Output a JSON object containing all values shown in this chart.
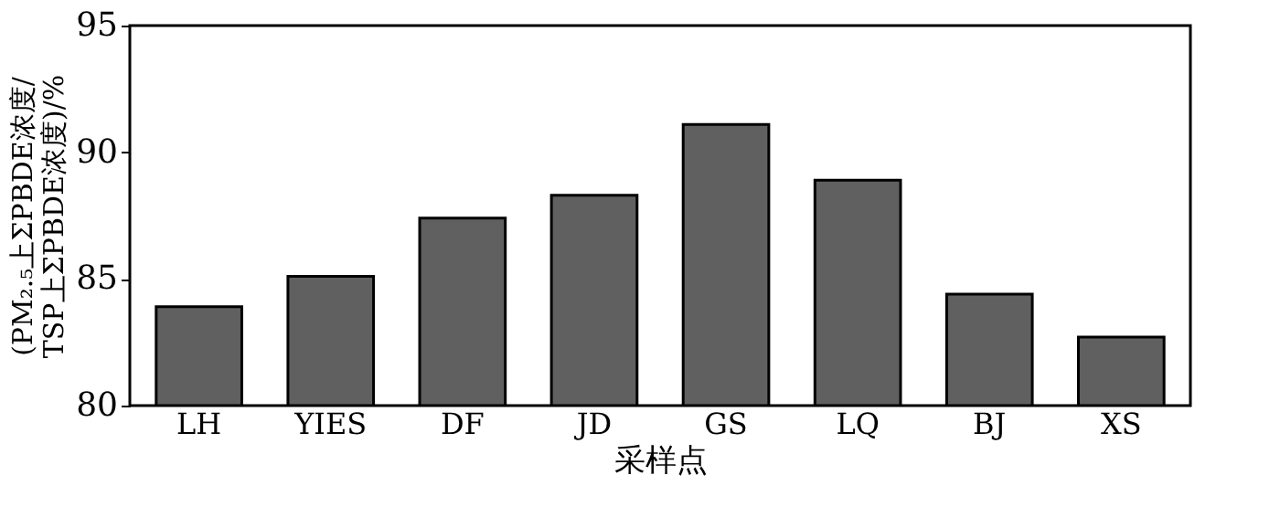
{
  "chart_data": {
    "type": "bar",
    "xlabel": "采样点",
    "ylabel": "(PM₂.₅上ΣPBDE浓度/\nTSP上ΣPBDE浓度)/%",
    "categories": [
      "LH",
      "YIES",
      "DF",
      "JD",
      "GS",
      "LQ",
      "BJ",
      "XS"
    ],
    "values": [
      83.9,
      85.1,
      87.4,
      88.3,
      91.1,
      88.9,
      84.4,
      82.7
    ],
    "color": "#606060",
    "ylim": [
      80,
      95
    ],
    "yticks": [
      80,
      85,
      90,
      95
    ],
    "grid": false
  }
}
